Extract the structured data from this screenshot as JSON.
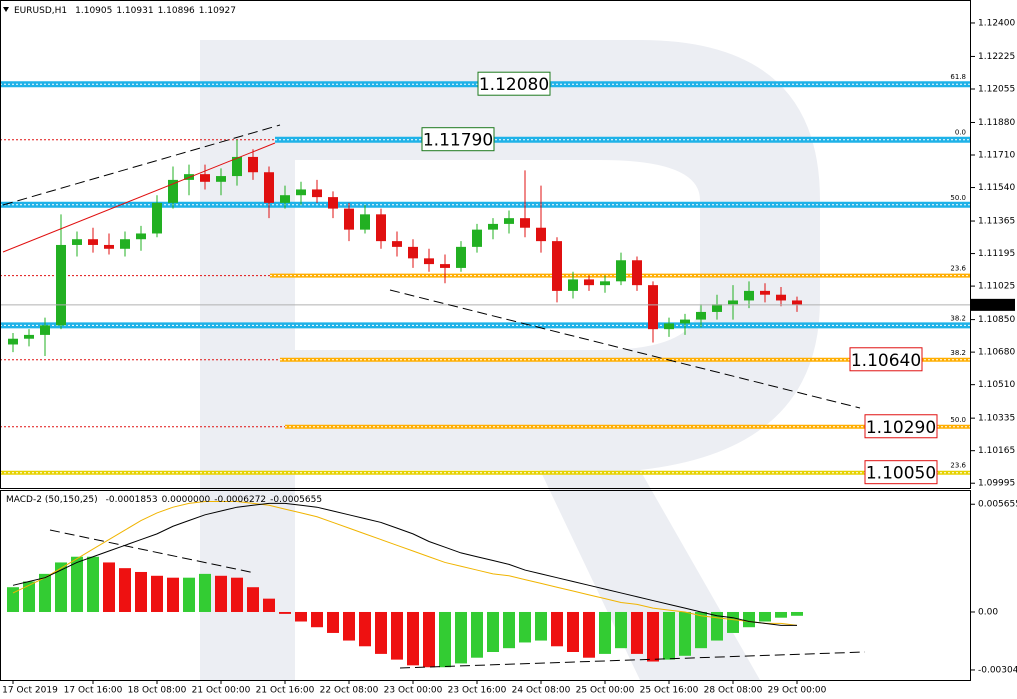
{
  "chart_data": [
    {
      "type": "candlestick",
      "title": "EURUSD,H1",
      "header_values": [
        "1.10905",
        "1.10931",
        "1.10896",
        "1.10927"
      ],
      "categories": [
        "17 Oct 2019",
        null,
        null,
        null,
        null,
        "17 Oct 16:00",
        null,
        null,
        null,
        "18 Oct 08:00",
        null,
        null,
        null,
        "21 Oct 00:00",
        null,
        null,
        null,
        "21 Oct 16:00",
        null,
        null,
        null,
        "22 Oct 08:00",
        null,
        null,
        null,
        "23 Oct 00:00",
        null,
        null,
        null,
        "23 Oct 16:00",
        null,
        null,
        null,
        "24 Oct 08:00",
        null,
        null,
        null,
        "25 Oct 00:00",
        null,
        null,
        null,
        "25 Oct 16:00",
        null,
        null,
        null,
        "28 Oct 08:00",
        null,
        null,
        null,
        "29 Oct 00:00"
      ],
      "open": [
        1.1072,
        1.1075,
        1.1077,
        1.1082,
        1.1124,
        1.1127,
        1.1124,
        1.1122,
        1.1127,
        1.113,
        1.1146,
        1.1158,
        1.1161,
        1.1157,
        1.116,
        1.117,
        1.1162,
        1.1146,
        1.115,
        1.1153,
        1.1149,
        1.1143,
        1.1132,
        1.114,
        1.1126,
        1.1123,
        1.1117,
        1.1114,
        1.1112,
        1.1123,
        1.1132,
        1.1135,
        1.1138,
        1.1133,
        1.1126,
        1.11,
        1.1106,
        1.1103,
        1.1105,
        1.1116,
        1.1103,
        1.108,
        1.1083,
        1.1085,
        1.1089,
        1.1093,
        1.1095,
        1.11,
        1.1098,
        1.1095
      ],
      "high": [
        1.1078,
        1.108,
        1.1086,
        1.114,
        1.1131,
        1.1133,
        1.113,
        1.1131,
        1.1134,
        1.115,
        1.1165,
        1.1166,
        1.1166,
        1.1164,
        1.1179,
        1.1174,
        1.1165,
        1.1155,
        1.1157,
        1.1158,
        1.1152,
        1.1146,
        1.1145,
        1.1143,
        1.1131,
        1.1127,
        1.1122,
        1.1119,
        1.1126,
        1.1135,
        1.1138,
        1.1142,
        1.1163,
        1.1155,
        1.1128,
        1.111,
        1.1108,
        1.1108,
        1.112,
        1.1118,
        1.1105,
        1.1086,
        1.1088,
        1.1093,
        1.1098,
        1.1103,
        1.1105,
        1.1104,
        1.1102,
        1.1097
      ],
      "low": [
        1.1068,
        1.1071,
        1.1066,
        1.108,
        1.1118,
        1.112,
        1.1119,
        1.1118,
        1.1121,
        1.1128,
        1.1143,
        1.115,
        1.1153,
        1.115,
        1.1155,
        1.1158,
        1.1138,
        1.1143,
        1.1145,
        1.1146,
        1.1138,
        1.1126,
        1.113,
        1.1122,
        1.1118,
        1.1112,
        1.111,
        1.1104,
        1.111,
        1.112,
        1.1127,
        1.113,
        1.1128,
        1.112,
        1.1094,
        1.1096,
        1.11,
        1.1099,
        1.1103,
        1.11,
        1.1073,
        1.1076,
        1.1077,
        1.1081,
        1.1085,
        1.1085,
        1.1091,
        1.1094,
        1.1092,
        1.1089
      ],
      "close": [
        1.1075,
        1.1077,
        1.1082,
        1.1124,
        1.1127,
        1.1124,
        1.1122,
        1.1127,
        1.113,
        1.1146,
        1.1158,
        1.1161,
        1.1157,
        1.116,
        1.117,
        1.1162,
        1.1146,
        1.115,
        1.1153,
        1.1149,
        1.1143,
        1.1132,
        1.114,
        1.1126,
        1.1123,
        1.1117,
        1.1114,
        1.1112,
        1.1123,
        1.1132,
        1.1135,
        1.1138,
        1.1133,
        1.1126,
        1.11,
        1.1106,
        1.1103,
        1.1105,
        1.1116,
        1.1103,
        1.108,
        1.1083,
        1.1085,
        1.1089,
        1.1093,
        1.1095,
        1.11,
        1.1098,
        1.1095,
        1.10927
      ],
      "up_color": "#22b022",
      "down_color": "#e01010",
      "ylim": [
        1.0997,
        1.1252
      ],
      "yticks": [
        {
          "value": 1.124,
          "label": "1.12400"
        },
        1.12225,
        1.12055,
        {
          "value": 1.1188,
          "label": "1.11880"
        },
        {
          "value": 1.1171,
          "label": "1.11710"
        },
        {
          "value": 1.1154,
          "label": "1.11540"
        },
        1.11365,
        1.11195,
        1.11025,
        {
          "value": 1.1085,
          "label": "1.10850"
        },
        {
          "value": 1.1068,
          "label": "1.10680"
        },
        {
          "value": 1.1051,
          "label": "1.10510"
        },
        1.10335,
        1.10165,
        1.09995
      ],
      "levels": [
        {
          "value": 1.1208,
          "style": "blue",
          "fib": "61.8",
          "fib_color": "#2a8a2a",
          "tag": "1.12080",
          "tag_color": "#1e7a1e"
        },
        {
          "value": 1.1179,
          "style": "blue",
          "fib": "0.0",
          "fib_color": "#d02020",
          "tag": "1.11790",
          "tag_color": "#1e7a1e"
        },
        {
          "value": 1.1145,
          "style": "blue",
          "fib": "50.0",
          "fib_color": "#2a8a2a"
        },
        {
          "value": 1.1108,
          "style": "orange",
          "fib": "23.6",
          "fib_color": "#d02020"
        },
        {
          "value": 1.1082,
          "style": "blue",
          "fib": "38.2",
          "fib_color": "#2a8a2a"
        },
        {
          "value": 1.1064,
          "style": "orange",
          "fib": "38.2",
          "fib_color": "#d02020",
          "tag": "1.10640",
          "tag_color": "#e01010"
        },
        {
          "value": 1.1029,
          "style": "orange",
          "fib": "50.0",
          "fib_color": "#d02020",
          "tag": "1.10290",
          "tag_color": "#e01010"
        },
        {
          "value": 1.1005,
          "style": "yellow",
          "fib": "23.6",
          "fib_color": "#2a8a2a",
          "tag": "1.10050",
          "tag_color": "#e01010"
        }
      ]
    },
    {
      "type": "macd",
      "title": "MACD-2 (50,150,25)",
      "header_values": [
        "-0.0001853",
        "0.0000000",
        "-0.0006272",
        "-0.0005655"
      ],
      "histogram": [
        0.0013,
        0.0016,
        0.002,
        0.0026,
        0.0029,
        0.0029,
        0.0026,
        0.0023,
        0.0021,
        0.0019,
        0.0018,
        0.0018,
        0.002,
        0.0019,
        0.0018,
        0.0013,
        0.0007,
        -0.0001,
        -0.0005,
        -0.0008,
        -0.0011,
        -0.0015,
        -0.0018,
        -0.0022,
        -0.0025,
        -0.0028,
        -0.0029,
        -0.0029,
        -0.0027,
        -0.0024,
        -0.0021,
        -0.0019,
        -0.0016,
        -0.0015,
        -0.0018,
        -0.0021,
        -0.0024,
        -0.0022,
        -0.0019,
        -0.0022,
        -0.0026,
        -0.0025,
        -0.0023,
        -0.0019,
        -0.0015,
        -0.0011,
        -0.0008,
        -0.0005,
        -0.0003,
        -0.0002
      ],
      "macd": [
        0.0014,
        0.0016,
        0.0018,
        0.0022,
        0.0026,
        0.0029,
        0.0032,
        0.0035,
        0.0038,
        0.0041,
        0.0045,
        0.0048,
        0.0051,
        0.0053,
        0.0055,
        0.0056,
        0.0057,
        0.0057,
        0.0056,
        0.0055,
        0.0053,
        0.0051,
        0.0049,
        0.0047,
        0.0044,
        0.0041,
        0.0037,
        0.0034,
        0.0031,
        0.0029,
        0.0027,
        0.0025,
        0.0022,
        0.002,
        0.0018,
        0.0016,
        0.0014,
        0.0012,
        0.001,
        0.0008,
        0.0006,
        0.0004,
        0.0002,
        0.0,
        -0.0002,
        -0.0003,
        -0.0005,
        -0.0006,
        -0.0007,
        -0.0007
      ],
      "signal": [
        0.001,
        0.0014,
        0.0018,
        0.0023,
        0.0028,
        0.0033,
        0.0038,
        0.0043,
        0.0048,
        0.0052,
        0.0055,
        0.0057,
        0.0058,
        0.0058,
        0.0058,
        0.0057,
        0.0056,
        0.0054,
        0.0052,
        0.005,
        0.0047,
        0.0044,
        0.0041,
        0.0038,
        0.0035,
        0.0032,
        0.0029,
        0.0026,
        0.0024,
        0.0022,
        0.002,
        0.0019,
        0.0017,
        0.0015,
        0.0013,
        0.0011,
        0.0009,
        0.0007,
        0.0005,
        0.0004,
        0.0002,
        0.0001,
        0.0,
        -0.0002,
        -0.0003,
        -0.0004,
        -0.0005,
        -0.0006,
        -0.0006,
        -0.0007
      ],
      "up_color": "#33cc33",
      "down_color": "#ee1111",
      "macd_color": "#000000",
      "signal_color": "#f0b400",
      "ylim": [
        -0.00357,
        0.00635
      ],
      "yticks": [
        0.0056551,
        {
          "value": 0,
          "label": "0.00"
        },
        -0.0030431
      ]
    }
  ]
}
